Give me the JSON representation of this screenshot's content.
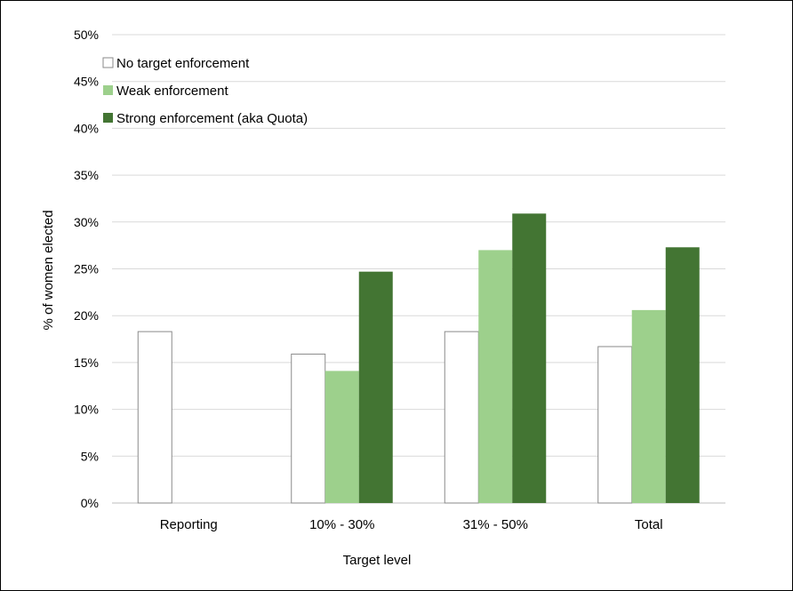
{
  "chart_data": {
    "type": "bar",
    "title": "",
    "xlabel": "Target level",
    "ylabel": "% of women elected",
    "categories": [
      "Reporting",
      "10% - 30%",
      "31% - 50%",
      "Total"
    ],
    "ylim": [
      0,
      50
    ],
    "yticks": [
      "0%",
      "5%",
      "10%",
      "15%",
      "20%",
      "25%",
      "30%",
      "35%",
      "40%",
      "45%",
      "50%"
    ],
    "grid": true,
    "legend_position": "top-left",
    "series": [
      {
        "name": "No target enforcement",
        "color": "#ffffff",
        "values": [
          18.3,
          15.9,
          18.3,
          16.7
        ]
      },
      {
        "name": "Weak enforcement",
        "color": "#9dd08c",
        "values": [
          null,
          14.1,
          27.0,
          20.6
        ]
      },
      {
        "name": "Strong enforcement (aka Quota)",
        "color": "#437533",
        "values": [
          null,
          24.7,
          30.9,
          27.3
        ]
      }
    ]
  }
}
